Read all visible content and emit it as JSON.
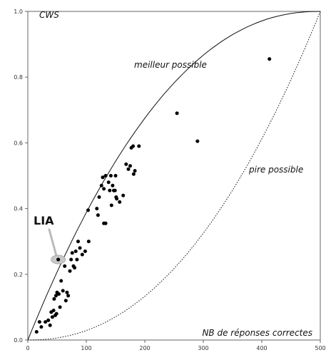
{
  "chart_data": {
    "type": "scatter",
    "ylabel": "CWS",
    "xlabel": "NB de réponses correctes",
    "xlim": [
      0,
      500
    ],
    "ylim": [
      0,
      1.0
    ],
    "x_ticks": [
      "0",
      "100",
      "200",
      "300",
      "400",
      "500"
    ],
    "y_ticks": [
      "0.0",
      "0.2",
      "0.4",
      "0.6",
      "0.8",
      "1.0"
    ],
    "grid": false,
    "curves": [
      {
        "label": "meilleur possible",
        "style": "solid"
      },
      {
        "label": "pire possible",
        "style": "dotted"
      }
    ],
    "highlight": {
      "label": "LIA",
      "x": 52,
      "y": 0.245
    },
    "points": [
      [
        15,
        0.025
      ],
      [
        20,
        0.055
      ],
      [
        23,
        0.04
      ],
      [
        30,
        0.055
      ],
      [
        35,
        0.06
      ],
      [
        38,
        0.045
      ],
      [
        40,
        0.085
      ],
      [
        42,
        0.07
      ],
      [
        44,
        0.09
      ],
      [
        47,
        0.075
      ],
      [
        49,
        0.08
      ],
      [
        45,
        0.125
      ],
      [
        48,
        0.135
      ],
      [
        50,
        0.145
      ],
      [
        53,
        0.14
      ],
      [
        55,
        0.1
      ],
      [
        57,
        0.18
      ],
      [
        60,
        0.15
      ],
      [
        63,
        0.225
      ],
      [
        65,
        0.12
      ],
      [
        67,
        0.145
      ],
      [
        69,
        0.135
      ],
      [
        72,
        0.21
      ],
      [
        74,
        0.245
      ],
      [
        76,
        0.265
      ],
      [
        78,
        0.225
      ],
      [
        80,
        0.22
      ],
      [
        82,
        0.27
      ],
      [
        84,
        0.245
      ],
      [
        86,
        0.3
      ],
      [
        89,
        0.28
      ],
      [
        93,
        0.26
      ],
      [
        98,
        0.27
      ],
      [
        104,
        0.3
      ],
      [
        103,
        0.395
      ],
      [
        118,
        0.4
      ],
      [
        120,
        0.38
      ],
      [
        122,
        0.435
      ],
      [
        126,
        0.47
      ],
      [
        128,
        0.495
      ],
      [
        130,
        0.46
      ],
      [
        130,
        0.355
      ],
      [
        133,
        0.355
      ],
      [
        133,
        0.5
      ],
      [
        138,
        0.48
      ],
      [
        140,
        0.455
      ],
      [
        142,
        0.5
      ],
      [
        143,
        0.41
      ],
      [
        145,
        0.47
      ],
      [
        147,
        0.455
      ],
      [
        149,
        0.455
      ],
      [
        150,
        0.5
      ],
      [
        151,
        0.435
      ],
      [
        152,
        0.43
      ],
      [
        157,
        0.42
      ],
      [
        163,
        0.44
      ],
      [
        168,
        0.535
      ],
      [
        172,
        0.52
      ],
      [
        175,
        0.53
      ],
      [
        177,
        0.585
      ],
      [
        180,
        0.59
      ],
      [
        181,
        0.505
      ],
      [
        183,
        0.515
      ],
      [
        190,
        0.59
      ],
      [
        255,
        0.69
      ],
      [
        290,
        0.605
      ],
      [
        413,
        0.855
      ]
    ]
  }
}
